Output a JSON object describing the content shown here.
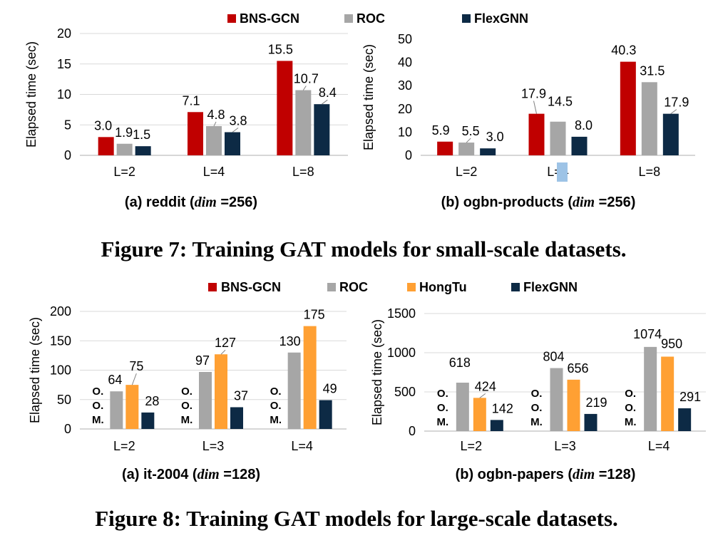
{
  "colors": {
    "BNS-GCN": "#c00000",
    "ROC": "#a6a6a6",
    "HongTu": "#ffa033",
    "FlexGNN": "#0d2a45",
    "highlight": "#9dc3e6"
  },
  "figure7": {
    "caption": "Figure 7: Training GAT models for small-scale datasets.",
    "legend": [
      "BNS-GCN",
      "ROC",
      "FlexGNN"
    ]
  },
  "figure8": {
    "caption": "Figure 8: Training GAT models for large-scale datasets.",
    "legend": [
      "BNS-GCN",
      "ROC",
      "HongTu",
      "FlexGNN"
    ]
  },
  "chart_data": [
    {
      "id": "fig7a",
      "type": "bar",
      "title": "(a) reddit (dim =256)",
      "title_parts": [
        "(a) reddit (",
        "dim",
        " =256)"
      ],
      "ylabel": "Elapsed time (sec)",
      "xlabel": "",
      "ylim": [
        0,
        20
      ],
      "yticks": [
        0,
        5,
        10,
        15,
        20
      ],
      "grid": true,
      "categories": [
        "L=2",
        "L=4",
        "L=8"
      ],
      "series": [
        {
          "name": "BNS-GCN",
          "values": [
            3.0,
            7.1,
            15.5
          ],
          "labels": [
            "3.0",
            "7.1",
            "15.5"
          ]
        },
        {
          "name": "ROC",
          "values": [
            1.9,
            4.8,
            10.7
          ],
          "labels": [
            "1.9",
            "4.8",
            "10.7"
          ]
        },
        {
          "name": "FlexGNN",
          "values": [
            1.5,
            3.8,
            8.4
          ],
          "labels": [
            "1.5",
            "3.8",
            "8.4"
          ]
        }
      ]
    },
    {
      "id": "fig7b",
      "type": "bar",
      "title": "(b) ogbn-products (dim =256)",
      "title_parts": [
        "(b) ogbn-products (",
        "dim",
        " =256)"
      ],
      "ylabel": "Elapsed time (sec)",
      "xlabel": "",
      "ylim": [
        0,
        50
      ],
      "yticks": [
        0,
        10,
        20,
        30,
        40,
        50
      ],
      "grid": false,
      "categories": [
        "L=2",
        "L=4",
        "L=8"
      ],
      "series": [
        {
          "name": "BNS-GCN",
          "values": [
            5.9,
            17.9,
            40.3
          ],
          "labels": [
            "5.9",
            "17.9",
            "40.3"
          ]
        },
        {
          "name": "ROC",
          "values": [
            5.5,
            14.5,
            31.5
          ],
          "labels": [
            "5.5",
            "14.5",
            "31.5"
          ]
        },
        {
          "name": "FlexGNN",
          "values": [
            3.0,
            8.0,
            17.9
          ],
          "labels": [
            "3.0",
            "8.0",
            "17.9"
          ]
        }
      ]
    },
    {
      "id": "fig8a",
      "type": "bar",
      "title": "(a) it-2004 (dim =128)",
      "title_parts": [
        "(a) it-2004 (",
        "dim",
        " =128)"
      ],
      "ylabel": "Elapsed time (sec)",
      "xlabel": "",
      "ylim": [
        0,
        200
      ],
      "yticks": [
        0,
        50,
        100,
        150,
        200
      ],
      "grid": true,
      "categories": [
        "L=2",
        "L=3",
        "L=4"
      ],
      "oom_label": [
        "O.",
        "O.",
        "M."
      ],
      "series": [
        {
          "name": "BNS-GCN",
          "values": [
            null,
            null,
            null
          ],
          "labels": [
            "",
            "",
            ""
          ]
        },
        {
          "name": "ROC",
          "values": [
            64,
            97,
            130
          ],
          "labels": [
            "64",
            "97",
            "130"
          ]
        },
        {
          "name": "HongTu",
          "values": [
            75,
            127,
            175
          ],
          "labels": [
            "75",
            "127",
            "175"
          ]
        },
        {
          "name": "FlexGNN",
          "values": [
            28,
            37,
            49
          ],
          "labels": [
            "28",
            "37",
            "49"
          ]
        }
      ]
    },
    {
      "id": "fig8b",
      "type": "bar",
      "title": "(b) ogbn-papers (dim =128)",
      "title_parts": [
        "(b) ogbn-papers (",
        "dim",
        " =128)"
      ],
      "ylabel": "Elapsed time (sec)",
      "xlabel": "",
      "ylim": [
        0,
        1500
      ],
      "yticks": [
        0,
        500,
        1000,
        1500
      ],
      "grid": true,
      "categories": [
        "L=2",
        "L=3",
        "L=4"
      ],
      "oom_label": [
        "O.",
        "O.",
        "M."
      ],
      "series": [
        {
          "name": "BNS-GCN",
          "values": [
            null,
            null,
            null
          ],
          "labels": [
            "",
            "",
            ""
          ]
        },
        {
          "name": "ROC",
          "values": [
            618,
            804,
            1074
          ],
          "labels": [
            "618",
            "804",
            "1074"
          ]
        },
        {
          "name": "HongTu",
          "values": [
            424,
            656,
            950
          ],
          "labels": [
            "424",
            "656",
            "950"
          ]
        },
        {
          "name": "FlexGNN",
          "values": [
            142,
            219,
            291
          ],
          "labels": [
            "142",
            "219",
            "291"
          ]
        }
      ]
    }
  ]
}
